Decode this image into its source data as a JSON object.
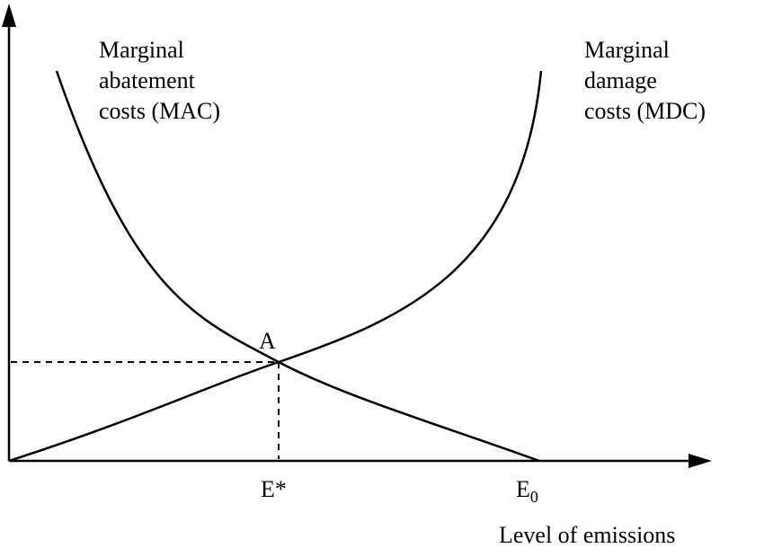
{
  "mac_label": {
    "line1": "Marginal",
    "line2": "abatement",
    "line3": "costs (MAC)"
  },
  "mdc_label": {
    "line1": "Marginal",
    "line2": "damage",
    "line3": "costs (MDC)"
  },
  "point_label": "A",
  "e_star_label": "E*",
  "e0_label": {
    "base": "E",
    "sub": "0"
  },
  "x_axis_label": "Level of emissions",
  "colors": {
    "ink": "#000000",
    "background": "#ffffff"
  }
}
